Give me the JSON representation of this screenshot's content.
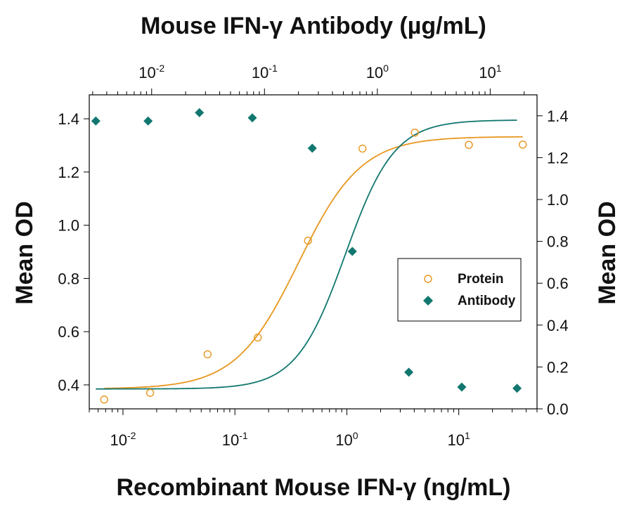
{
  "chart_data": {
    "type": "scatter",
    "title": "Mouse IFN-γ Antibody (µg/mL)",
    "xlabel": "Recombinant Mouse IFN-γ (ng/mL)",
    "ylabel_left": "Mean OD",
    "ylabel_right": "Mean OD",
    "x_scale": "log",
    "xlim": [
      0.005,
      50
    ],
    "x_ticks": [
      {
        "base": "10",
        "exp": "-2",
        "value": 0.01
      },
      {
        "base": "10",
        "exp": "-1",
        "value": 0.1
      },
      {
        "base": "10",
        "exp": "0",
        "value": 1
      },
      {
        "base": "10",
        "exp": "1",
        "value": 10
      }
    ],
    "top_axis": {
      "scale": "log",
      "xlim": [
        0.0028,
        26
      ],
      "ticks": [
        {
          "base": "10",
          "exp": "-2",
          "value": 0.01
        },
        {
          "base": "10",
          "exp": "-1",
          "value": 0.1
        },
        {
          "base": "10",
          "exp": "0",
          "value": 1
        },
        {
          "base": "10",
          "exp": "1",
          "value": 10
        }
      ]
    },
    "ylim_left": [
      0.31,
      1.49
    ],
    "y_ticks_left": [
      "0.4",
      "0.6",
      "0.8",
      "1.0",
      "1.2",
      "1.4"
    ],
    "ylim_right": [
      0.0,
      1.5
    ],
    "y_ticks_right": [
      "0.0",
      "0.2",
      "0.4",
      "0.6",
      "0.8",
      "1.0",
      "1.2",
      "1.4"
    ],
    "grid": false,
    "legend": {
      "placement": "center-right"
    },
    "series": [
      {
        "name": "Protein",
        "marker": "open-circle",
        "color": "#E8961E",
        "axis": "left",
        "x_axis": "bottom",
        "x": [
          0.0068,
          0.0175,
          0.057,
          0.16,
          0.45,
          1.38,
          4.05,
          12.3,
          37.3
        ],
        "y": [
          0.345,
          0.37,
          0.515,
          0.578,
          0.942,
          1.288,
          1.348,
          1.302,
          1.303
        ],
        "fit": {
          "bottom": 0.385,
          "top": 1.333,
          "ec50": 0.37,
          "hill": 1.55
        }
      },
      {
        "name": "Antibody",
        "marker": "filled-diamond",
        "color": "#11776F",
        "axis": "right",
        "x_axis": "top",
        "x": [
          0.0032,
          0.0093,
          0.0265,
          0.078,
          0.265,
          0.6,
          1.9,
          5.6,
          17.3
        ],
        "y": [
          1.375,
          1.375,
          1.415,
          1.39,
          1.245,
          0.752,
          0.175,
          0.104,
          0.098
        ],
        "fit": {
          "bottom": 0.095,
          "top": 1.38,
          "ec50": 0.52,
          "hill": 2.0
        }
      }
    ]
  }
}
